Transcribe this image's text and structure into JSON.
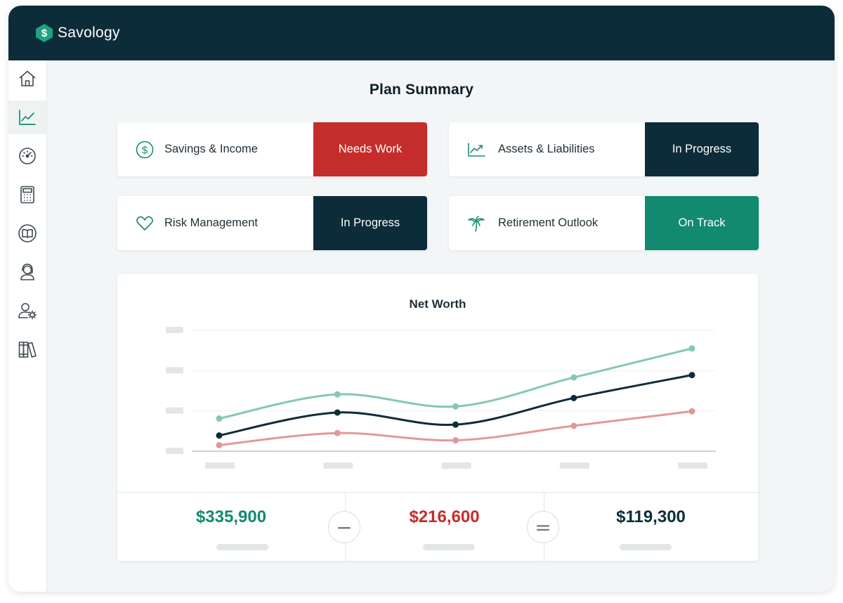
{
  "app": {
    "name": "Savology"
  },
  "nav": {
    "items": [
      {
        "icon": "home-icon"
      },
      {
        "icon": "line-chart-icon",
        "active": true
      },
      {
        "icon": "gauge-icon"
      },
      {
        "icon": "calculator-icon"
      },
      {
        "icon": "book-icon"
      },
      {
        "icon": "advisor-icon"
      },
      {
        "icon": "user-settings-icon"
      },
      {
        "icon": "library-icon"
      }
    ]
  },
  "page": {
    "title": "Plan Summary"
  },
  "cards": [
    {
      "icon": "dollar-icon",
      "label": "Savings & Income",
      "status": "Needs Work",
      "status_color": "#c52d2a"
    },
    {
      "icon": "trend-icon",
      "label": "Assets & Liabilities",
      "status": "In Progress",
      "status_color": "#0d2c3a"
    },
    {
      "icon": "heart-icon",
      "label": "Risk Management",
      "status": "In Progress",
      "status_color": "#0d2c3a"
    },
    {
      "icon": "palm-tree-icon",
      "label": "Retirement Outlook",
      "status": "On Track",
      "status_color": "#118a70"
    }
  ],
  "chart_data": {
    "type": "line",
    "title": "Net Worth",
    "xlabel": "",
    "ylabel": "",
    "x_tick_count": 5,
    "y_tick_count": 4,
    "ylim": [
      0,
      100
    ],
    "grid": true,
    "legend": "none",
    "series": [
      {
        "color": "#85c9ad",
        "values": [
          27,
          47,
          37,
          61,
          85
        ]
      },
      {
        "color": "#0d2c3a",
        "values": [
          13,
          32,
          22,
          44,
          63
        ]
      },
      {
        "color": "#e39898",
        "values": [
          5,
          15,
          9,
          21,
          33
        ]
      }
    ]
  },
  "summary": {
    "assets": {
      "value": "$335,900",
      "color": "#118a70"
    },
    "minus_symbol": "−",
    "liabilities": {
      "value": "$216,600",
      "color": "#c52d2a"
    },
    "equals_symbol": "=",
    "net_worth": {
      "value": "$119,300",
      "color": "#0d2c3a"
    }
  }
}
